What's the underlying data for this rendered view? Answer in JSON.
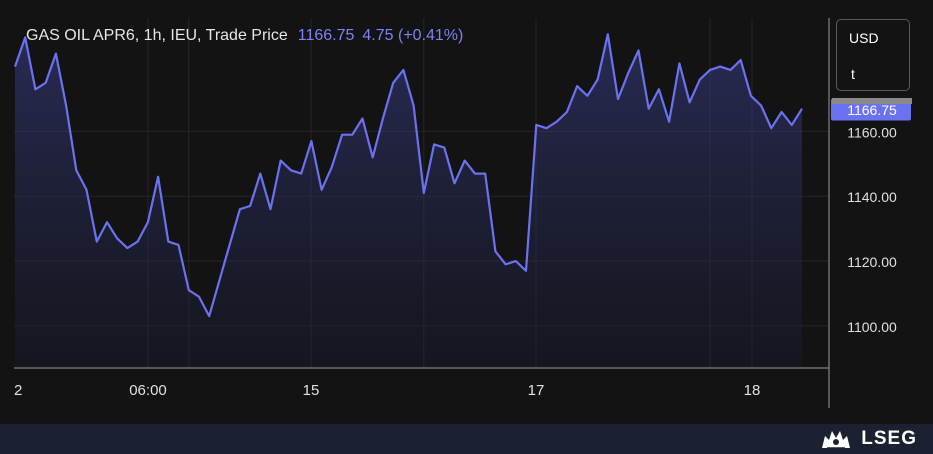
{
  "header": {
    "instrument": "GAS OIL APR6, 1h, IEU, Trade Price",
    "last": "1166.75",
    "change": "4.75 (+0.41%)"
  },
  "units": {
    "currency": "USD",
    "quantity": "t"
  },
  "brand": {
    "name": "LSEG"
  },
  "colors": {
    "line": "#6a72f0",
    "background": "#131313",
    "grid": "#262626",
    "price_tag": "#6a72f0",
    "footer": "#1b2131"
  },
  "chart_data": {
    "type": "area",
    "title": "GAS OIL APR6, 1h, IEU, Trade Price",
    "xlabel": "",
    "ylabel": "",
    "x_tick_labels": [
      "2",
      "06:00",
      "15",
      "17",
      "18"
    ],
    "y_ticks": [
      1100,
      1120,
      1140,
      1160
    ],
    "y_tick_labels": [
      "1100.00",
      "1120.00",
      "1140.00",
      "1160.00"
    ],
    "ylim": [
      1087,
      1195
    ],
    "last_value": 1166.75,
    "last_value_label": "1166.75",
    "grid": true,
    "series": [
      {
        "values": [
          1180,
          1189,
          1173,
          1175,
          1184,
          1168,
          1148,
          1142,
          1126,
          1132,
          1127,
          1124,
          1126,
          1132,
          1146,
          1126,
          1125,
          1111,
          1109,
          1103,
          1114,
          1125,
          1136,
          1137,
          1147,
          1136,
          1151,
          1148,
          1147,
          1157,
          1142,
          1149,
          1159,
          1159,
          1164,
          1152,
          1164,
          1175,
          1179,
          1168,
          1141,
          1156,
          1155,
          1144,
          1151,
          1147,
          1147,
          1123,
          1119,
          1120,
          1117,
          1162,
          1161,
          1163,
          1166,
          1174,
          1171,
          1176,
          1190,
          1170,
          1178,
          1185,
          1167,
          1173,
          1163,
          1181,
          1169,
          1176,
          1179,
          1180,
          1179,
          1182,
          1171,
          1168,
          1161,
          1166,
          1162,
          1167
        ]
      }
    ]
  }
}
